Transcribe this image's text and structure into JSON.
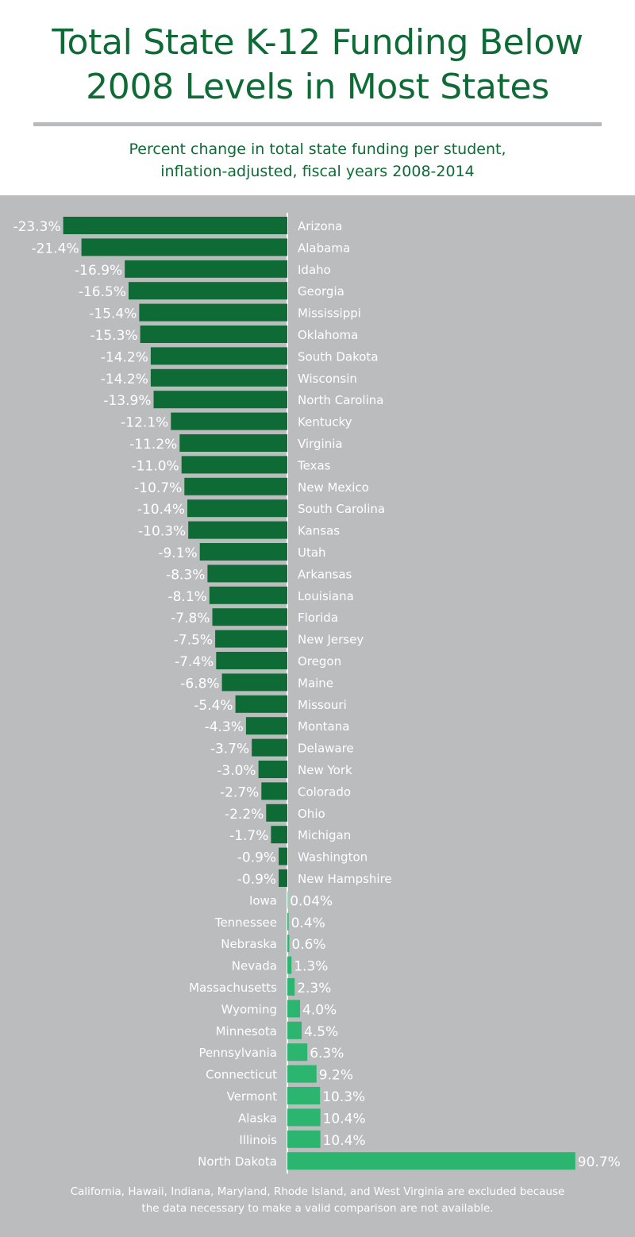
{
  "header": {
    "title_line1": "Total State K-12 Funding Below",
    "title_line2": "2008 Levels in Most States",
    "subtitle_line1": "Percent change in total state funding per student,",
    "subtitle_line2": "inflation-adjusted, fiscal years 2008-2014"
  },
  "footnote": {
    "line1": "California, Hawaii, Indiana, Maryland, Rhode Island, and West Virginia are excluded because",
    "line2": "the data necessary to make a valid comparison are not available."
  },
  "colors": {
    "negative_bar": "#0e6b35",
    "positive_bar": "#2cb56e",
    "panel_background": "#bbbcbe",
    "title_text": "#0e6b35",
    "rule": "#b9babc",
    "label_text": "#ffffff"
  },
  "chart_data": {
    "type": "bar",
    "orientation": "horizontal",
    "title": "Total State K-12 Funding Below 2008 Levels in Most States",
    "subtitle": "Percent change in total state funding per student, inflation-adjusted, fiscal years 2008-2014",
    "xlabel": "",
    "ylabel": "",
    "grid": false,
    "legend": "none",
    "categories": [
      "Arizona",
      "Alabama",
      "Idaho",
      "Georgia",
      "Mississippi",
      "Oklahoma",
      "South Dakota",
      "Wisconsin",
      "North Carolina",
      "Kentucky",
      "Virginia",
      "Texas",
      "New Mexico",
      "South Carolina",
      "Kansas",
      "Utah",
      "Arkansas",
      "Louisiana",
      "Florida",
      "New Jersey",
      "Oregon",
      "Maine",
      "Missouri",
      "Montana",
      "Delaware",
      "New York",
      "Colorado",
      "Ohio",
      "Michigan",
      "Washington",
      "New Hampshire",
      "Iowa",
      "Tennessee",
      "Nebraska",
      "Nevada",
      "Massachusetts",
      "Wyoming",
      "Minnesota",
      "Pennsylvania",
      "Connecticut",
      "Vermont",
      "Alaska",
      "Illinois",
      "North Dakota"
    ],
    "values": [
      -23.3,
      -21.4,
      -16.9,
      -16.5,
      -15.4,
      -15.3,
      -14.2,
      -14.2,
      -13.9,
      -12.1,
      -11.2,
      -11.0,
      -10.7,
      -10.4,
      -10.3,
      -9.1,
      -8.3,
      -8.1,
      -7.8,
      -7.5,
      -7.4,
      -6.8,
      -5.4,
      -4.3,
      -3.7,
      -3.0,
      -2.7,
      -2.2,
      -1.7,
      -0.9,
      -0.9,
      0.04,
      0.4,
      0.6,
      1.3,
      2.3,
      4.0,
      4.5,
      6.3,
      9.2,
      10.3,
      10.4,
      10.4,
      90.7
    ],
    "value_labels": [
      "-23.3%",
      "-21.4%",
      "-16.9%",
      "-16.5%",
      "-15.4%",
      "-15.3%",
      "-14.2%",
      "-14.2%",
      "-13.9%",
      "-12.1%",
      "-11.2%",
      "-11.0%",
      "-10.7%",
      "-10.4%",
      "-10.3%",
      "-9.1%",
      "-8.3%",
      "-8.1%",
      "-7.8%",
      "-7.5%",
      "-7.4%",
      "-6.8%",
      "-5.4%",
      "-4.3%",
      "-3.7%",
      "-3.0%",
      "-2.7%",
      "-2.2%",
      "-1.7%",
      "-0.9%",
      "-0.9%",
      "0.04%",
      "0.4%",
      "0.6%",
      "1.3%",
      "2.3%",
      "4.0%",
      "4.5%",
      "6.3%",
      "9.2%",
      "10.3%",
      "10.4%",
      "10.4%",
      "90.7%"
    ]
  }
}
